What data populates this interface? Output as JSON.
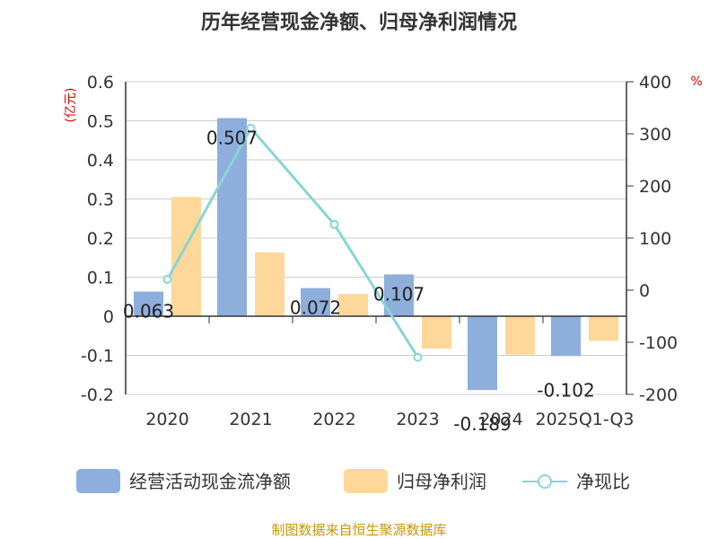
{
  "chart_data": {
    "type": "bar",
    "title": "历年经营现金净额、归母净利润情况",
    "categories": [
      "2020",
      "2021",
      "2022",
      "2023",
      "2024",
      "2025Q1-Q3"
    ],
    "series": [
      {
        "name": "经营活动现金流净额",
        "type": "bar",
        "axis": "left",
        "color": "#8eaedc",
        "values": [
          0.063,
          0.507,
          0.072,
          0.107,
          -0.189,
          -0.102
        ]
      },
      {
        "name": "归母净利润",
        "type": "bar",
        "axis": "left",
        "color": "#fdd89a",
        "values": [
          0.305,
          0.163,
          0.057,
          -0.083,
          -0.098,
          -0.063
        ]
      },
      {
        "name": "净现比",
        "type": "line",
        "axis": "right",
        "color": "#88d4d6",
        "values": [
          20.6,
          310.9,
          126.3,
          -128.9,
          null,
          null
        ]
      }
    ],
    "data_labels": [
      "0.063",
      "0.507",
      "0.072",
      "0.107",
      "-0.189",
      "-0.102"
    ],
    "y_left": {
      "unit": "(亿元)",
      "ylim": [
        -0.2,
        0.6
      ],
      "ticks": [
        "0.6",
        "0.5",
        "0.4",
        "0.3",
        "0.2",
        "0.1",
        "0",
        "-0.1",
        "-0.2"
      ]
    },
    "y_right": {
      "unit": "%",
      "ylim": [
        -200,
        400
      ],
      "ticks": [
        "400",
        "300",
        "200",
        "100",
        "0",
        "-100",
        "-200"
      ]
    },
    "grid": true,
    "legend_position": "bottom"
  },
  "source": "制图数据来自恒生聚源数据库"
}
